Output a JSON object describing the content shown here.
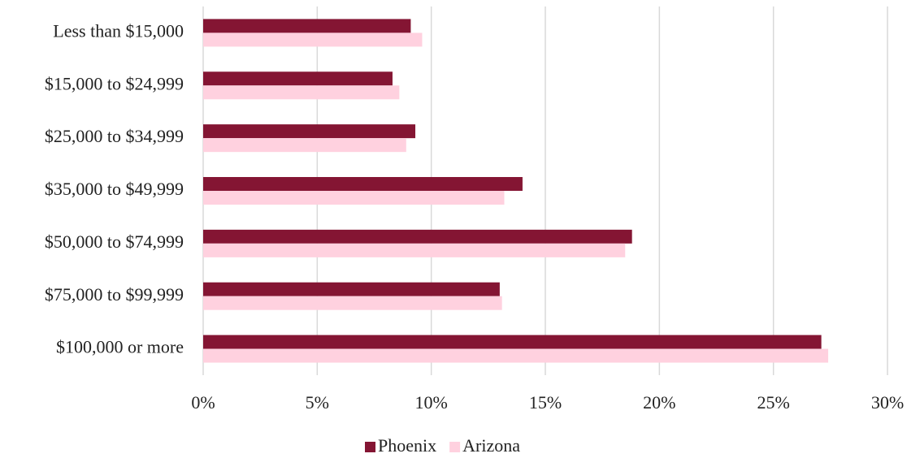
{
  "chart_data": {
    "type": "bar",
    "orientation": "horizontal",
    "categories": [
      "Less than $15,000",
      "$15,000 to $24,999",
      "$25,000 to $34,999",
      "$35,000 to $49,999",
      "$50,000 to $74,999",
      "$75,000 to $99,999",
      "$100,000 or more"
    ],
    "series": [
      {
        "name": "Phoenix",
        "color": "#841533",
        "values": [
          9.1,
          8.3,
          9.3,
          14.0,
          18.8,
          13.0,
          27.1
        ]
      },
      {
        "name": "Arizona",
        "color": "#ffd1df",
        "values": [
          9.6,
          8.6,
          8.9,
          13.2,
          18.5,
          13.1,
          27.4
        ]
      }
    ],
    "xlim": [
      0,
      30
    ],
    "xticks": [
      {
        "value": 0,
        "label": "0%"
      },
      {
        "value": 5,
        "label": "5%"
      },
      {
        "value": 10,
        "label": "10%"
      },
      {
        "value": 15,
        "label": "15%"
      },
      {
        "value": 20,
        "label": "20%"
      },
      {
        "value": 25,
        "label": "25%"
      },
      {
        "value": 30,
        "label": "30%"
      }
    ],
    "grid": true,
    "legend": "bottom"
  }
}
